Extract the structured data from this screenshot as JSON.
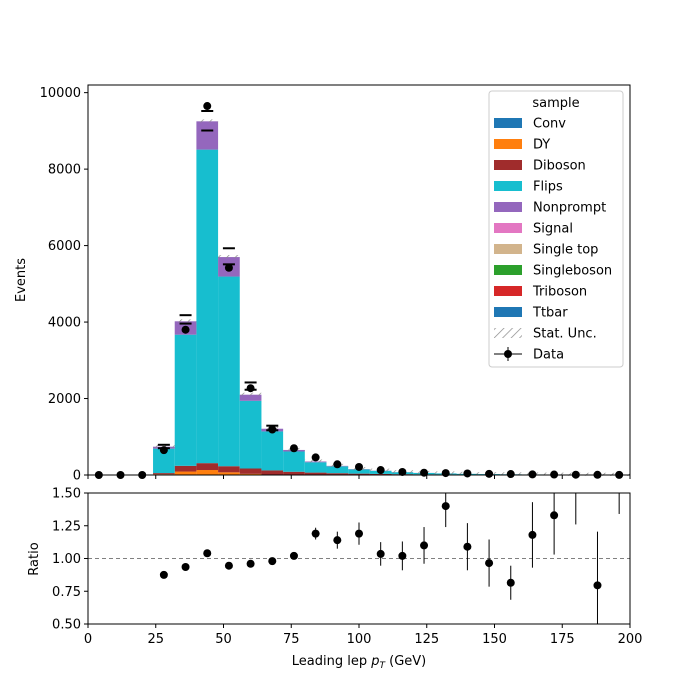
{
  "chart_data": [
    {
      "type": "bar",
      "stacked": true,
      "ylabel": "Events",
      "ylim": [
        0,
        10200
      ],
      "yticks": [
        0,
        2000,
        4000,
        6000,
        8000,
        10000
      ],
      "xlim": [
        0,
        200
      ],
      "bin_edges": [
        0,
        8,
        16,
        24,
        32,
        40,
        48,
        56,
        64,
        72,
        80,
        88,
        96,
        104,
        112,
        120,
        128,
        136,
        144,
        152,
        160,
        168,
        176,
        184,
        192,
        200
      ],
      "series": [
        {
          "name": "Conv",
          "color": "#1f77b4",
          "values": [
            0,
            0,
            0,
            0,
            0,
            0,
            0,
            0,
            0,
            0,
            0,
            0,
            0,
            0,
            0,
            0,
            0,
            0,
            0,
            0,
            0,
            0,
            0,
            0,
            0
          ]
        },
        {
          "name": "DY",
          "color": "#ff7f0e",
          "values": [
            0,
            0,
            0,
            20,
            90,
            130,
            70,
            30,
            10,
            5,
            3,
            2,
            1,
            1,
            0,
            0,
            0,
            0,
            0,
            0,
            0,
            0,
            0,
            0,
            0
          ]
        },
        {
          "name": "Diboson",
          "color": "#a02c2c",
          "values": [
            0,
            0,
            0,
            30,
            150,
            180,
            160,
            140,
            110,
            80,
            60,
            45,
            35,
            28,
            22,
            18,
            15,
            12,
            10,
            8,
            6,
            5,
            4,
            3,
            2
          ]
        },
        {
          "name": "Flips",
          "color": "#17becf",
          "values": [
            0,
            0,
            0,
            640,
            3430,
            8200,
            4960,
            1770,
            1020,
            530,
            270,
            180,
            110,
            80,
            50,
            35,
            25,
            18,
            14,
            10,
            8,
            6,
            4,
            3,
            2
          ]
        },
        {
          "name": "Nonprompt",
          "color": "#9467bd",
          "values": [
            0,
            0,
            0,
            50,
            350,
            740,
            510,
            160,
            70,
            40,
            20,
            12,
            8,
            5,
            3,
            2,
            2,
            1,
            1,
            1,
            0,
            0,
            0,
            0,
            0
          ]
        },
        {
          "name": "Signal",
          "color": "#e377c2",
          "values": [
            0,
            0,
            0,
            0,
            0,
            0,
            0,
            0,
            0,
            0,
            0,
            0,
            0,
            0,
            0,
            0,
            0,
            0,
            0,
            0,
            0,
            0,
            0,
            0,
            0
          ]
        },
        {
          "name": "Single top",
          "color": "#d2b48c",
          "values": [
            0,
            0,
            0,
            0,
            0,
            0,
            0,
            0,
            0,
            0,
            0,
            0,
            0,
            0,
            0,
            0,
            0,
            0,
            0,
            0,
            0,
            0,
            0,
            0,
            0
          ]
        },
        {
          "name": "Singleboson",
          "color": "#2ca02c",
          "values": [
            0,
            0,
            0,
            0,
            0,
            0,
            0,
            0,
            0,
            0,
            0,
            0,
            0,
            0,
            0,
            0,
            0,
            0,
            0,
            0,
            0,
            0,
            0,
            0,
            0
          ]
        },
        {
          "name": "Triboson",
          "color": "#d62728",
          "values": [
            0,
            0,
            0,
            0,
            0,
            0,
            0,
            0,
            0,
            0,
            0,
            0,
            0,
            0,
            0,
            0,
            0,
            0,
            0,
            0,
            0,
            0,
            0,
            0,
            0
          ]
        },
        {
          "name": "Ttbar",
          "color": "#1f77b4",
          "values": [
            0,
            0,
            0,
            0,
            0,
            0,
            0,
            0,
            0,
            0,
            0,
            0,
            0,
            0,
            0,
            0,
            0,
            0,
            0,
            0,
            0,
            0,
            0,
            0,
            0
          ]
        }
      ],
      "data_points": {
        "name": "Data",
        "x": [
          4,
          12,
          20,
          28,
          36,
          44,
          52,
          60,
          68,
          76,
          84,
          92,
          100,
          108,
          116,
          124,
          132,
          140,
          148,
          156,
          164,
          172,
          180,
          188,
          196
        ],
        "y": [
          0,
          0,
          0,
          650,
          3800,
          9650,
          5420,
          2270,
          1190,
          700,
          460,
          280,
          210,
          130,
          80,
          60,
          50,
          40,
          30,
          25,
          15,
          12,
          8,
          5,
          3
        ]
      },
      "stat_unc_markers": [
        {
          "x": 28,
          "up": 790,
          "down": 700
        },
        {
          "x": 36,
          "up": 4180,
          "down": 3960
        },
        {
          "x": 44,
          "up": 9520,
          "down": 9010
        },
        {
          "x": 52,
          "up": 5930,
          "down": 5510
        },
        {
          "x": 60,
          "up": 2420,
          "down": 2230
        },
        {
          "x": 68,
          "up": 1290,
          "down": 1170
        }
      ],
      "legend": {
        "title": "sample",
        "placement": "upper-right",
        "entries": [
          "Conv",
          "DY",
          "Diboson",
          "Flips",
          "Nonprompt",
          "Signal",
          "Single top",
          "Singleboson",
          "Triboson",
          "Ttbar",
          "Stat. Unc.",
          "Data"
        ]
      }
    },
    {
      "type": "scatter",
      "ylabel": "Ratio",
      "xlabel": "Leading lep $p_T$ (GeV)",
      "xlabel_main": "Leading lep ",
      "xlabel_sym": "p",
      "xlabel_sub": "T",
      "xlabel_unit": " (GeV)",
      "xlim": [
        0,
        200
      ],
      "ylim": [
        0.5,
        1.5
      ],
      "xticks": [
        0,
        25,
        50,
        75,
        100,
        125,
        150,
        175,
        200
      ],
      "yticks": [
        0.5,
        0.75,
        1.0,
        1.25,
        1.5
      ],
      "ytick_labels": [
        "0.50",
        "0.75",
        "1.00",
        "1.25",
        "1.50"
      ],
      "reference_line": 1.0,
      "points": [
        {
          "x": 28,
          "y": 0.875,
          "err": 0.01
        },
        {
          "x": 36,
          "y": 0.935,
          "err": 0.01
        },
        {
          "x": 44,
          "y": 1.04,
          "err": 0.01
        },
        {
          "x": 52,
          "y": 0.945,
          "err": 0.01
        },
        {
          "x": 60,
          "y": 0.96,
          "err": 0.01
        },
        {
          "x": 68,
          "y": 0.98,
          "err": 0.015
        },
        {
          "x": 76,
          "y": 1.02,
          "err": 0.025
        },
        {
          "x": 84,
          "y": 1.19,
          "err": 0.045
        },
        {
          "x": 92,
          "y": 1.14,
          "err": 0.065
        },
        {
          "x": 100,
          "y": 1.19,
          "err": 0.085
        },
        {
          "x": 108,
          "y": 1.035,
          "err": 0.09
        },
        {
          "x": 116,
          "y": 1.02,
          "err": 0.11
        },
        {
          "x": 124,
          "y": 1.1,
          "err": 0.14
        },
        {
          "x": 132,
          "y": 1.4,
          "err": 0.16
        },
        {
          "x": 140,
          "y": 1.09,
          "err": 0.18
        },
        {
          "x": 148,
          "y": 0.965,
          "err": 0.18
        },
        {
          "x": 156,
          "y": 0.815,
          "err": 0.13
        },
        {
          "x": 164,
          "y": 1.18,
          "err": 0.25
        },
        {
          "x": 172,
          "y": 1.33,
          "err": 0.3
        },
        {
          "x": 180,
          "y": null,
          "err_low_visible": 1.26
        },
        {
          "x": 188,
          "y": 0.795,
          "err": 0.41
        },
        {
          "x": 196,
          "y": null,
          "err_low_visible": 1.34
        }
      ]
    }
  ]
}
